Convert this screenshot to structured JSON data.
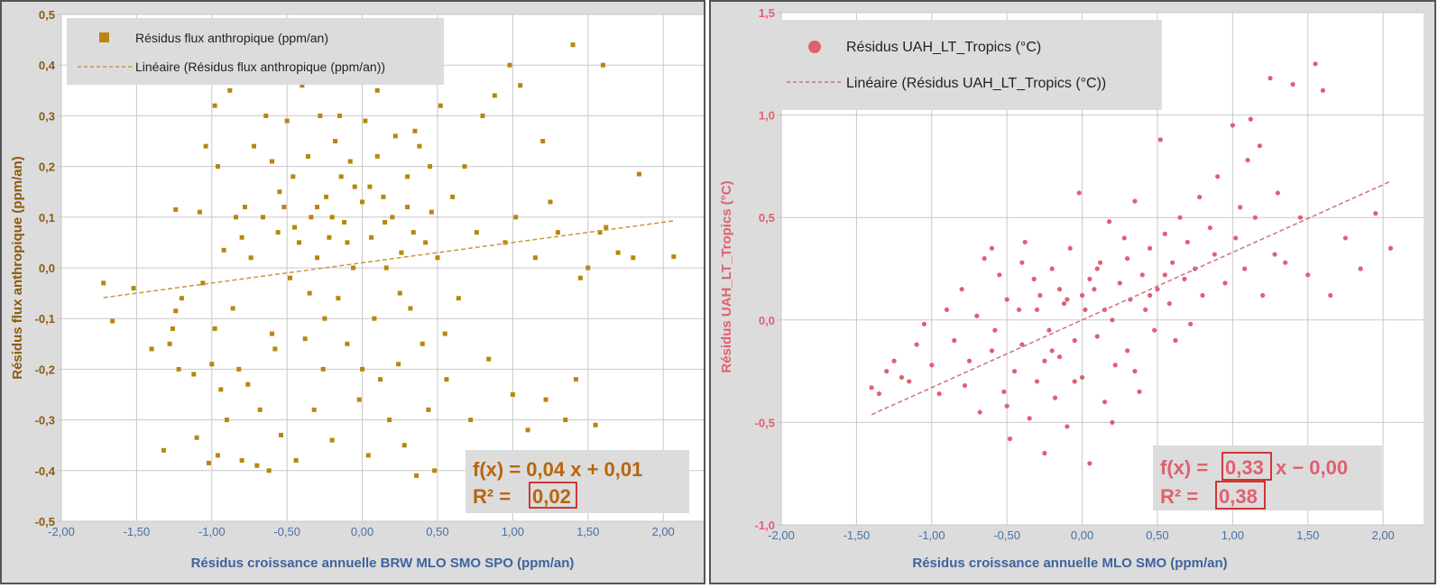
{
  "chart_data": [
    {
      "type": "scatter",
      "id": "left",
      "xlabel": "Résidus croissance annuelle BRW MLO SMO SPO (ppm/an)",
      "ylabel": "Résidus flux anthropique (ppm/an)",
      "xlim": [
        -2.0,
        2.0
      ],
      "ylim": [
        -0.5,
        0.5
      ],
      "x_ticks": [
        "-2,00",
        "-1,50",
        "-1,00",
        "-0,50",
        "0,00",
        "0,50",
        "1,00",
        "1,50",
        "2,00"
      ],
      "y_ticks": [
        "0,5",
        "0,4",
        "0,3",
        "0,2",
        "0,1",
        "0,0",
        "-0,1",
        "-0,2",
        "-0,3",
        "-0,4",
        "-0,5"
      ],
      "grid": true,
      "legend_position": "top-left",
      "legend": [
        "Résidus flux anthropique (ppm/an)",
        "Linéaire (Résidus flux anthropique (ppm/an))"
      ],
      "color": "#b8860b",
      "axis_color": "#8b5a10",
      "marker": "square",
      "equation_prefix": "f(x) = 0,04 x + 0,01",
      "r2_label": "R² =",
      "r2_value": "0,02",
      "trendline": {
        "slope": 0.04,
        "intercept": 0.01,
        "x_from": -1.72,
        "x_to": 2.08
      },
      "points": [
        [
          -1.72,
          -0.03
        ],
        [
          -1.66,
          -0.105
        ],
        [
          -1.52,
          -0.04
        ],
        [
          -1.4,
          -0.16
        ],
        [
          -1.32,
          -0.36
        ],
        [
          -1.28,
          -0.15
        ],
        [
          -1.26,
          -0.12
        ],
        [
          -1.24,
          -0.085
        ],
        [
          -1.24,
          0.115
        ],
        [
          -1.22,
          -0.2
        ],
        [
          -1.2,
          -0.06
        ],
        [
          -1.12,
          -0.21
        ],
        [
          -1.1,
          -0.335
        ],
        [
          -1.08,
          0.11
        ],
        [
          -1.06,
          -0.03
        ],
        [
          -1.04,
          0.24
        ],
        [
          -1.02,
          -0.385
        ],
        [
          -1.0,
          -0.19
        ],
        [
          -0.98,
          -0.12
        ],
        [
          -0.98,
          0.32
        ],
        [
          -0.96,
          -0.37
        ],
        [
          -0.96,
          0.2
        ],
        [
          -0.94,
          -0.24
        ],
        [
          -0.92,
          0.035
        ],
        [
          -0.9,
          -0.3
        ],
        [
          -0.88,
          0.35
        ],
        [
          -0.86,
          -0.08
        ],
        [
          -0.84,
          0.1
        ],
        [
          -0.82,
          -0.2
        ],
        [
          -0.8,
          -0.38
        ],
        [
          -0.8,
          0.06
        ],
        [
          -0.78,
          0.12
        ],
        [
          -0.76,
          -0.23
        ],
        [
          -0.74,
          0.02
        ],
        [
          -0.72,
          0.24
        ],
        [
          -0.7,
          -0.39
        ],
        [
          -0.68,
          -0.28
        ],
        [
          -0.66,
          0.1
        ],
        [
          -0.64,
          0.3
        ],
        [
          -0.62,
          -0.4
        ],
        [
          -0.6,
          0.21
        ],
        [
          -0.58,
          -0.16
        ],
        [
          -0.56,
          0.07
        ],
        [
          -0.54,
          -0.33
        ],
        [
          -0.52,
          0.12
        ],
        [
          -0.5,
          0.29
        ],
        [
          -0.48,
          -0.02
        ],
        [
          -0.46,
          0.18
        ],
        [
          -0.44,
          -0.38
        ],
        [
          -0.42,
          0.05
        ],
        [
          -0.4,
          0.36
        ],
        [
          -0.38,
          -0.14
        ],
        [
          -0.36,
          0.22
        ],
        [
          -0.34,
          0.1
        ],
        [
          -0.32,
          -0.28
        ],
        [
          -0.3,
          0.02
        ],
        [
          -0.28,
          0.3
        ],
        [
          -0.26,
          -0.2
        ],
        [
          -0.24,
          0.14
        ],
        [
          -0.22,
          0.06
        ],
        [
          -0.2,
          -0.34
        ],
        [
          -0.18,
          0.25
        ],
        [
          -0.16,
          -0.06
        ],
        [
          -0.14,
          0.18
        ],
        [
          -0.12,
          0.09
        ],
        [
          -0.1,
          -0.15
        ],
        [
          -0.08,
          0.21
        ],
        [
          -0.06,
          0.0
        ],
        [
          -0.04,
          0.37
        ],
        [
          -0.02,
          -0.26
        ],
        [
          0.0,
          0.13
        ],
        [
          0.02,
          0.29
        ],
        [
          0.04,
          -0.37
        ],
        [
          0.06,
          0.06
        ],
        [
          0.08,
          -0.1
        ],
        [
          0.1,
          0.22
        ],
        [
          0.12,
          -0.22
        ],
        [
          0.14,
          0.14
        ],
        [
          0.16,
          0.0
        ],
        [
          0.18,
          -0.3
        ],
        [
          0.2,
          0.1
        ],
        [
          0.22,
          0.26
        ],
        [
          0.24,
          -0.19
        ],
        [
          0.26,
          0.03
        ],
        [
          0.28,
          -0.35
        ],
        [
          0.3,
          0.18
        ],
        [
          0.32,
          -0.08
        ],
        [
          0.34,
          0.07
        ],
        [
          0.36,
          -0.41
        ],
        [
          0.38,
          0.24
        ],
        [
          0.4,
          -0.15
        ],
        [
          0.42,
          0.05
        ],
        [
          0.44,
          -0.28
        ],
        [
          0.46,
          0.11
        ],
        [
          0.48,
          -0.4
        ],
        [
          0.5,
          0.02
        ],
        [
          0.52,
          0.32
        ],
        [
          0.56,
          -0.22
        ],
        [
          0.6,
          0.14
        ],
        [
          0.64,
          -0.06
        ],
        [
          0.68,
          0.2
        ],
        [
          0.72,
          -0.3
        ],
        [
          0.76,
          0.07
        ],
        [
          0.8,
          0.3
        ],
        [
          0.84,
          -0.18
        ],
        [
          0.88,
          0.34
        ],
        [
          0.92,
          -0.37
        ],
        [
          0.95,
          0.05
        ],
        [
          0.98,
          0.4
        ],
        [
          1.0,
          -0.25
        ],
        [
          1.02,
          0.1
        ],
        [
          1.05,
          0.36
        ],
        [
          1.1,
          -0.32
        ],
        [
          1.15,
          0.02
        ],
        [
          1.2,
          0.25
        ],
        [
          1.22,
          -0.26
        ],
        [
          1.25,
          0.13
        ],
        [
          1.3,
          0.07
        ],
        [
          1.35,
          -0.3
        ],
        [
          1.4,
          0.44
        ],
        [
          1.42,
          -0.22
        ],
        [
          1.45,
          -0.02
        ],
        [
          1.5,
          0.0
        ],
        [
          1.55,
          -0.31
        ],
        [
          1.58,
          0.07
        ],
        [
          1.6,
          0.4
        ],
        [
          1.62,
          0.08
        ],
        [
          1.7,
          0.03
        ],
        [
          1.8,
          0.02
        ],
        [
          1.84,
          0.185
        ],
        [
          2.07,
          0.022
        ],
        [
          -0.3,
          0.12
        ],
        [
          -0.2,
          0.1
        ],
        [
          -0.1,
          0.05
        ],
        [
          0.05,
          0.16
        ],
        [
          0.15,
          0.09
        ],
        [
          -0.45,
          0.08
        ],
        [
          -0.35,
          -0.05
        ],
        [
          0.25,
          -0.05
        ],
        [
          0.35,
          0.27
        ],
        [
          -0.6,
          -0.13
        ],
        [
          -0.55,
          0.15
        ],
        [
          0.45,
          0.2
        ],
        [
          0.55,
          -0.13
        ],
        [
          -0.25,
          -0.1
        ],
        [
          0.0,
          -0.2
        ],
        [
          0.1,
          0.35
        ],
        [
          -0.15,
          0.3
        ],
        [
          0.3,
          0.12
        ],
        [
          -0.05,
          0.16
        ]
      ]
    },
    {
      "type": "scatter",
      "id": "right",
      "xlabel": "Résidus croissance annuelle MLO SMO (ppm/an)",
      "ylabel": "Résidus UAH_LT_Tropics (°C)",
      "xlim": [
        -2.0,
        2.0
      ],
      "ylim": [
        -1.0,
        1.5
      ],
      "x_ticks": [
        "-2,00",
        "-1,50",
        "-1,00",
        "-0,50",
        "0,00",
        "0,50",
        "1,00",
        "1,50",
        "2,00"
      ],
      "y_ticks": [
        "1,5",
        "1,0",
        "0,5",
        "0,0",
        "-0,5",
        "-1,0"
      ],
      "grid": true,
      "legend_position": "top-left",
      "legend": [
        "Résidus UAH_LT_Tropics (°C)",
        "Linéaire (Résidus UAH_LT_Tropics (°C))"
      ],
      "color": "#e06070",
      "axis_color": "#e06070",
      "marker": "circle",
      "equation_prefix": "f(x) =",
      "equation_slope": "0,33",
      "equation_suffix": "x − 0,00",
      "r2_label": "R² =",
      "r2_value": "0,38",
      "trendline": {
        "slope": 0.33,
        "intercept": 0.0,
        "x_from": -1.4,
        "x_to": 2.05
      },
      "points": [
        [
          -1.4,
          -0.33
        ],
        [
          -1.35,
          -0.36
        ],
        [
          -1.3,
          -0.25
        ],
        [
          -1.25,
          -0.2
        ],
        [
          -1.2,
          -0.28
        ],
        [
          -1.15,
          -0.3
        ],
        [
          -1.1,
          -0.12
        ],
        [
          -1.05,
          -0.02
        ],
        [
          -1.0,
          -0.22
        ],
        [
          -0.95,
          -0.36
        ],
        [
          -0.9,
          0.05
        ],
        [
          -0.85,
          -0.1
        ],
        [
          -0.8,
          0.15
        ],
        [
          -0.78,
          -0.32
        ],
        [
          -0.75,
          -0.2
        ],
        [
          -0.7,
          0.02
        ],
        [
          -0.68,
          -0.45
        ],
        [
          -0.65,
          0.3
        ],
        [
          -0.6,
          -0.15
        ],
        [
          -0.58,
          -0.05
        ],
        [
          -0.55,
          0.22
        ],
        [
          -0.52,
          -0.35
        ],
        [
          -0.5,
          0.1
        ],
        [
          -0.48,
          -0.58
        ],
        [
          -0.45,
          -0.25
        ],
        [
          -0.42,
          0.05
        ],
        [
          -0.4,
          -0.12
        ],
        [
          -0.38,
          0.38
        ],
        [
          -0.35,
          -0.48
        ],
        [
          -0.32,
          0.2
        ],
        [
          -0.3,
          -0.3
        ],
        [
          -0.28,
          0.12
        ],
        [
          -0.25,
          -0.65
        ],
        [
          -0.22,
          -0.05
        ],
        [
          -0.2,
          0.25
        ],
        [
          -0.18,
          -0.38
        ],
        [
          -0.15,
          -0.18
        ],
        [
          -0.12,
          0.08
        ],
        [
          -0.1,
          -0.52
        ],
        [
          -0.08,
          0.35
        ],
        [
          -0.05,
          -0.1
        ],
        [
          -0.02,
          0.62
        ],
        [
          0.0,
          -0.28
        ],
        [
          0.02,
          0.05
        ],
        [
          0.05,
          -0.7
        ],
        [
          0.08,
          0.15
        ],
        [
          0.1,
          -0.08
        ],
        [
          0.12,
          0.28
        ],
        [
          0.15,
          -0.4
        ],
        [
          0.18,
          0.48
        ],
        [
          0.2,
          0.0
        ],
        [
          0.22,
          -0.22
        ],
        [
          0.25,
          0.18
        ],
        [
          0.28,
          0.4
        ],
        [
          0.3,
          -0.15
        ],
        [
          0.32,
          0.1
        ],
        [
          0.35,
          0.58
        ],
        [
          0.38,
          -0.35
        ],
        [
          0.4,
          0.22
        ],
        [
          0.42,
          0.05
        ],
        [
          0.45,
          0.35
        ],
        [
          0.48,
          -0.05
        ],
        [
          0.5,
          0.15
        ],
        [
          0.52,
          0.88
        ],
        [
          0.55,
          0.42
        ],
        [
          0.58,
          0.08
        ],
        [
          0.6,
          0.28
        ],
        [
          0.62,
          -0.1
        ],
        [
          0.65,
          0.5
        ],
        [
          0.68,
          0.2
        ],
        [
          0.7,
          0.38
        ],
        [
          0.72,
          -0.02
        ],
        [
          0.75,
          0.25
        ],
        [
          0.78,
          0.6
        ],
        [
          0.8,
          0.12
        ],
        [
          0.85,
          0.45
        ],
        [
          0.88,
          0.32
        ],
        [
          0.9,
          0.7
        ],
        [
          0.95,
          0.18
        ],
        [
          1.0,
          0.95
        ],
        [
          1.02,
          0.4
        ],
        [
          1.05,
          0.55
        ],
        [
          1.08,
          0.25
        ],
        [
          1.1,
          0.78
        ],
        [
          1.12,
          0.98
        ],
        [
          1.15,
          0.5
        ],
        [
          1.18,
          0.85
        ],
        [
          1.2,
          0.12
        ],
        [
          1.25,
          1.18
        ],
        [
          1.28,
          0.32
        ],
        [
          1.3,
          0.62
        ],
        [
          1.35,
          0.28
        ],
        [
          1.4,
          1.15
        ],
        [
          1.45,
          0.5
        ],
        [
          1.5,
          0.22
        ],
        [
          1.55,
          1.25
        ],
        [
          1.6,
          1.12
        ],
        [
          1.65,
          0.12
        ],
        [
          1.75,
          0.4
        ],
        [
          1.85,
          0.25
        ],
        [
          1.95,
          0.52
        ],
        [
          2.05,
          0.35
        ],
        [
          -0.6,
          0.35
        ],
        [
          -0.5,
          -0.42
        ],
        [
          -0.4,
          0.28
        ],
        [
          -0.3,
          0.05
        ],
        [
          -0.2,
          -0.15
        ],
        [
          -0.1,
          0.1
        ],
        [
          0.0,
          0.12
        ],
        [
          0.1,
          0.25
        ],
        [
          0.2,
          -0.5
        ],
        [
          0.3,
          0.3
        ],
        [
          -0.15,
          0.15
        ],
        [
          -0.25,
          -0.2
        ],
        [
          0.15,
          0.05
        ],
        [
          0.05,
          0.2
        ],
        [
          -0.05,
          -0.3
        ],
        [
          0.35,
          -0.25
        ],
        [
          0.45,
          0.12
        ],
        [
          0.55,
          0.22
        ]
      ]
    }
  ]
}
